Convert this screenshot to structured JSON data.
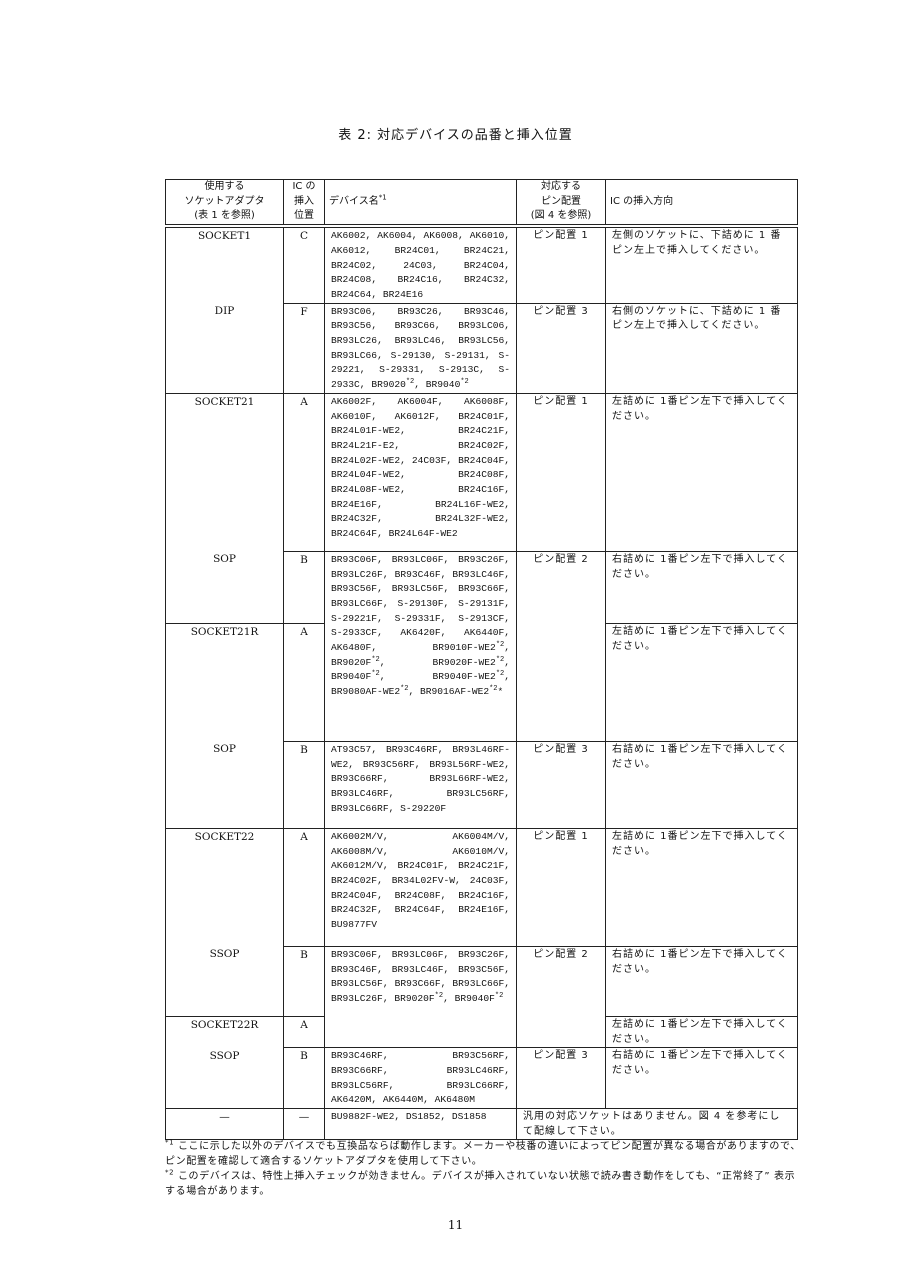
{
  "title": "表 2: 対応デバイスの品番と挿入位置",
  "headers": {
    "adapter": [
      "使用する",
      "ソケットアダプタ",
      "(表 1 を参照)"
    ],
    "position": [
      "IC の",
      "挿入",
      "位置"
    ],
    "device": "デバイス名",
    "device_note": "*1",
    "pin": [
      "対応する",
      "ピン配置",
      "(図 4 を参照)"
    ],
    "direction": "IC の挿入方向"
  },
  "rows": [
    {
      "adapter": "SOCKET1",
      "pos": "C",
      "pin": "ピン配置 1",
      "dir": "左側のソケットに、下詰めに 1 番ピン左上で挿入してください。",
      "devices": [
        "AK6002",
        "AK6004",
        "AK6008",
        "AK6010",
        "AK6012",
        "BR24C01",
        "BR24C21",
        "BR24C02",
        "24C03",
        "BR24C04",
        "BR24C08",
        "BR24C16",
        "BR24C32",
        "BR24C64",
        "BR24E16"
      ]
    },
    {
      "adapter": "DIP",
      "pos": "F",
      "pin": "ピン配置 3",
      "dir": "右側のソケットに、下詰めに 1 番ピン左上で挿入してください。",
      "devices": [
        "BR93C06",
        "BR93C26",
        "BR93C46",
        "BR93C56",
        "BR93C66",
        "BR93LC06",
        "BR93LC26",
        "BR93LC46",
        "BR93LC56",
        "BR93LC66",
        "S-29130",
        "S-29131",
        "S-29221",
        "S-29331",
        "S-2913C",
        "S-2933C",
        "BR9020*2",
        "BR9040*2"
      ]
    },
    {
      "adapter": "SOCKET21",
      "pos": "A",
      "pin": "ピン配置 1",
      "dir": "左詰めに 1番ピン左下で挿入してください。",
      "devices": [
        "AK6002F",
        "AK6004F",
        "AK6008F",
        "AK6010F",
        "AK6012F",
        "BR24C01F",
        "BR24L01F-WE2",
        "BR24C21F",
        "BR24L21F-E2",
        "BR24C02F",
        "BR24L02F-WE2",
        "24C03F",
        "BR24C04F",
        "BR24L04F-WE2",
        "BR24C08F",
        "BR24L08F-WE2",
        "BR24C16F",
        "BR24E16F",
        "BR24L16F-WE2",
        "BR24C32F",
        "BR24L32F-WE2",
        "BR24C64F",
        "BR24L64F-WE2"
      ]
    },
    {
      "adapter": "SOP",
      "pos": "B",
      "pin": "ピン配置 2",
      "dir": "右詰めに 1番ピン左下で挿入してください。",
      "devices": [
        "BR93C06F",
        "BR93LC06F",
        "BR93C26F",
        "BR93LC26F",
        "BR93C46F",
        "BR93LC46F",
        "BR93C56F",
        "BR93LC56F",
        "BR93C66F",
        "BR93LC66F",
        ""
      ]
    },
    {
      "adapter": "SOCKET21R",
      "pos": "A",
      "pin": "",
      "dir": "左詰めに 1番ピン左下で挿入してください。",
      "devices": [
        "S-29130F",
        "S-29131F",
        "S-29221F",
        "S-29331F",
        "S-2913CF",
        "S-2933CF",
        "AK6420F",
        "AK6440F",
        "AK6480F",
        "BR9010F-WE2*2",
        "BR9020F*2",
        "BR9020F-WE2*2",
        "BR9040F*2",
        "BR9040F-WE2*2",
        "BR9080AF-WE2*2",
        "BR9016AF-WE2*2*"
      ]
    },
    {
      "adapter": "SOP",
      "pos": "B",
      "pin": "ピン配置 3",
      "dir": "右詰めに 1番ピン左下で挿入してください。",
      "devices": [
        "AT93C57",
        "BR93C46RF",
        "BR93L46RF-WE2",
        "BR93C56RF",
        "BR93L56RF-WE2",
        "BR93C66RF",
        "BR93L66RF-WE2",
        "BR93LC46RF",
        "BR93LC56RF",
        "BR93LC66RF",
        "S-29220F"
      ]
    },
    {
      "adapter": "SOCKET22",
      "pos": "A",
      "pin": "ピン配置 1",
      "dir": "左詰めに 1番ピン左下で挿入してください。",
      "devices": [
        "AK6002M/V",
        "AK6004M/V",
        "AK6008M/V",
        "AK6010M/V",
        "AK6012M/V",
        "BR24C01F",
        "BR24C21F",
        "BR24C02F",
        "BR34L02FV-W",
        "24C03F",
        "BR24C04F",
        "BR24C08F",
        "BR24C16F",
        "BR24C32F",
        "BR24C64F",
        "BR24E16F",
        "BU9877FV"
      ]
    },
    {
      "adapter": "SSOP",
      "pos": "B",
      "pin": "ピン配置 2",
      "dir": "右詰めに 1番ピン左下で挿入してください。",
      "devices": [
        "BR93C06F",
        "BR93LC06F",
        "BR93C26F",
        "BR93C46F",
        "BR93LC46F",
        "BR93C56F",
        "BR93LC56F",
        "BR93C66F",
        "BR93LC66F",
        ""
      ]
    },
    {
      "adapter": "SOCKET22R",
      "pos": "A",
      "pin": "",
      "dir": "左詰めに 1番ピン左下で挿入してください。",
      "devices": [
        "BR93LC26F",
        "BR9020F*2",
        "BR9040F*2"
      ]
    },
    {
      "adapter": "SSOP",
      "pos": "B",
      "pin": "ピン配置 3",
      "dir": "右詰めに 1番ピン左下で挿入してください。",
      "devices": [
        "BR93C46RF",
        "BR93C56RF",
        "BR93C66RF",
        "BR93LC46RF",
        "BR93LC56RF",
        "BR93LC66RF",
        "AK6420M",
        "AK6440M",
        "AK6480M"
      ]
    },
    {
      "adapter": "—",
      "pos": "—",
      "pin": "汎用の対応ソケットはありません。図 4 を参考にして配線して下さい。",
      "dir": "",
      "devices": [
        "BU9882F-WE2",
        "DS1852",
        "DS1858"
      ]
    }
  ],
  "footnotes": [
    {
      "mark": "*1",
      "text": "ここに示した以外のデバイスでも互換品ならば動作します。メーカーや枝番の違いによってピン配置が異なる場合がありますので、ピン配置を確認して適合するソケットアダプタを使用して下さい。"
    },
    {
      "mark": "*2",
      "text": "このデバイスは、特性上挿入チェックが効きません。デバイスが挿入されていない状態で読み書き動作をしても、“正常終了” 表示する場合があります。"
    }
  ],
  "page_number": "11"
}
